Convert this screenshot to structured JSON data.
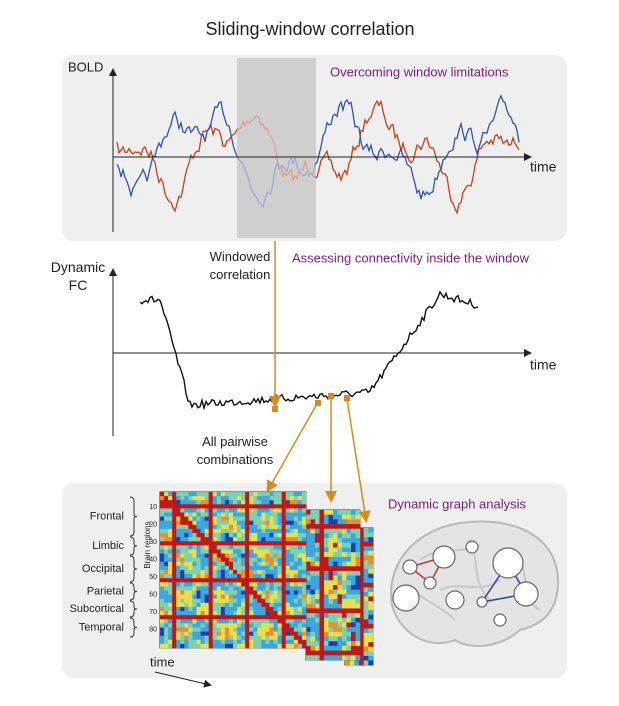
{
  "title": "Sliding-window correlation",
  "top_panel": {
    "y_label": "BOLD",
    "heading": "Overcoming window limitations",
    "x_label": "time"
  },
  "middle_panel": {
    "y_label": [
      "Dynamic",
      "FC"
    ],
    "heading": "Assessing connectivity inside the window",
    "x_label": "time",
    "window_label": [
      "Windowed",
      "correlation"
    ],
    "pairwise_label": [
      "All pairwise",
      "combinations"
    ]
  },
  "bottom_panel": {
    "heading": "Dynamic graph analysis",
    "regions": [
      "Frontal",
      "Limbic",
      "Occipital",
      "Parietal",
      "Subcortical",
      "Temporal"
    ],
    "axis_label": "Brain regions",
    "ticks": [
      10,
      20,
      30,
      40,
      50,
      60,
      70,
      80
    ],
    "time_label": "time"
  }
}
